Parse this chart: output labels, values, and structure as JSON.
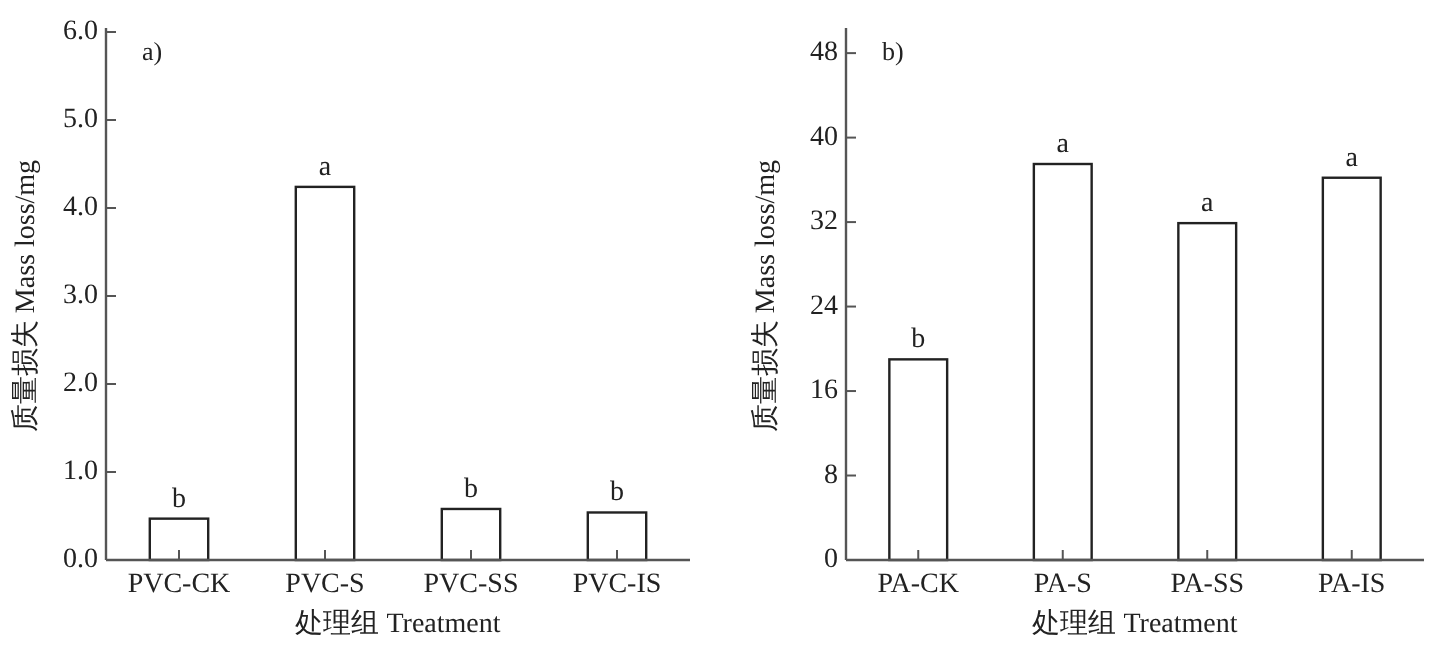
{
  "chart_data": [
    {
      "type": "bar",
      "title": "a)",
      "xlabel": "处理组 Treatment",
      "ylabel": "质量损失 Mass loss/mg",
      "categories": [
        "PVC-CK",
        "PVC-S",
        "PVC-SS",
        "PVC-IS"
      ],
      "values": [
        0.47,
        4.24,
        0.58,
        0.54
      ],
      "color": "#ffffff",
      "ylim": [
        0,
        6
      ],
      "yticks": [
        {
          "value": 0,
          "label": "0.0"
        },
        {
          "value": 1,
          "label": "1.0"
        },
        {
          "value": 2,
          "label": "2.0"
        },
        {
          "value": 3,
          "label": "3.0"
        },
        {
          "value": 4,
          "label": "4.0"
        },
        {
          "value": 5,
          "label": "5.0"
        },
        {
          "value": 6,
          "label": "6.0"
        }
      ],
      "grid": false,
      "annotations": [
        {
          "text": "b",
          "x": "PVC-CK",
          "y": 0.47
        },
        {
          "text": "a",
          "x": "PVC-S",
          "y": 4.24
        },
        {
          "text": "b",
          "x": "PVC-SS",
          "y": 0.58
        },
        {
          "text": "b",
          "x": "PVC-IS",
          "y": 0.54
        }
      ]
    },
    {
      "type": "bar",
      "title": "b)",
      "xlabel": "处理组 Treatment",
      "ylabel": "质量损失 Mass loss/mg",
      "categories": [
        "PA-CK",
        "PA-S",
        "PA-SS",
        "PA-IS"
      ],
      "values": [
        19.0,
        37.5,
        31.9,
        36.2
      ],
      "color": "#ffffff",
      "ylim": [
        0,
        50
      ],
      "yticks": [
        0,
        8,
        16,
        24,
        32,
        40,
        48
      ],
      "grid": false,
      "annotations": [
        {
          "text": "b",
          "x": "PA-CK",
          "y": 19.0
        },
        {
          "text": "a",
          "x": "PA-S",
          "y": 37.5
        },
        {
          "text": "a",
          "x": "PA-SS",
          "y": 31.9
        },
        {
          "text": "a",
          "x": "PA-IS",
          "y": 36.2
        }
      ]
    }
  ]
}
